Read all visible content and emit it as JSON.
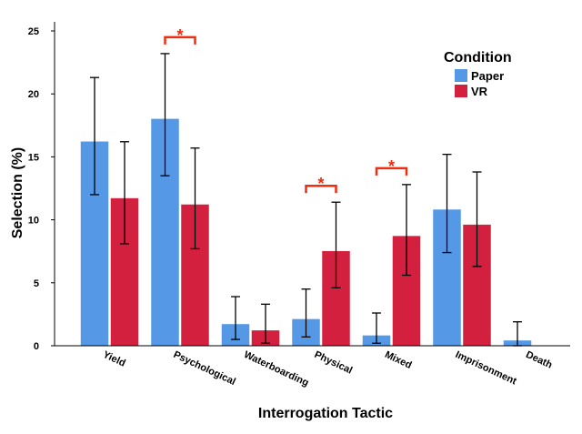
{
  "chart_data": {
    "type": "bar",
    "title": "",
    "xlabel": "Interrogation Tactic",
    "ylabel": "Selection (%)",
    "ylim": [
      0,
      25
    ],
    "yticks": [
      0,
      5,
      10,
      15,
      20,
      25
    ],
    "grid": false,
    "legend": {
      "title": "Condition",
      "placement": "top-right"
    },
    "categories": [
      "Yield",
      "Psychological",
      "Waterboarding",
      "Physical",
      "Mixed",
      "Imprisonment",
      "Death"
    ],
    "series": [
      {
        "name": "Paper",
        "color": "#5599e6",
        "values": [
          16.2,
          18.0,
          1.7,
          2.1,
          0.8,
          10.8,
          0.4
        ],
        "error_low": [
          12.0,
          13.5,
          0.5,
          0.7,
          0.2,
          7.4,
          0.0
        ],
        "error_high": [
          21.3,
          23.2,
          3.9,
          4.5,
          2.6,
          15.2,
          1.9
        ]
      },
      {
        "name": "VR",
        "color": "#d3203f",
        "values": [
          11.7,
          11.2,
          1.2,
          7.5,
          8.7,
          9.6,
          0.0
        ],
        "error_low": [
          8.1,
          7.7,
          0.2,
          4.6,
          5.6,
          6.3,
          0.0
        ],
        "error_high": [
          16.2,
          15.7,
          3.3,
          11.4,
          12.8,
          13.8,
          0.0
        ]
      }
    ],
    "significance": [
      {
        "category": "Psychological",
        "label": "*"
      },
      {
        "category": "Physical",
        "label": "*"
      },
      {
        "category": "Mixed",
        "label": "*"
      }
    ],
    "significance_color": "#ef2d0f"
  }
}
